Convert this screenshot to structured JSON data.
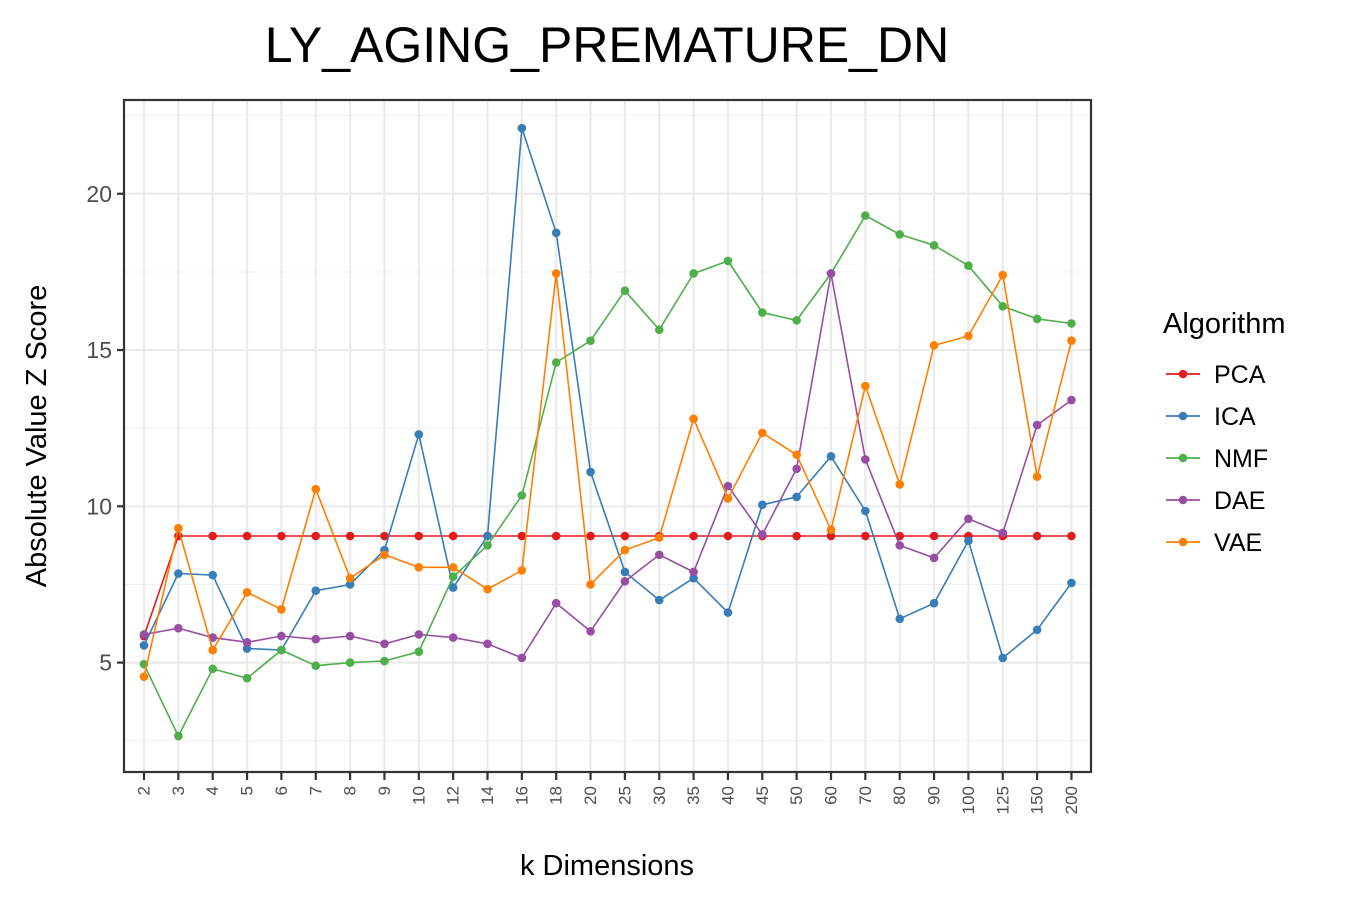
{
  "chart_data": {
    "type": "line",
    "title": "LY_AGING_PREMATURE_DN",
    "xlabel": "k Dimensions",
    "ylabel": "Absolute Value Z Score",
    "categories": [
      "2",
      "3",
      "4",
      "5",
      "6",
      "7",
      "8",
      "9",
      "10",
      "12",
      "14",
      "16",
      "18",
      "20",
      "25",
      "30",
      "35",
      "40",
      "45",
      "50",
      "60",
      "70",
      "80",
      "90",
      "100",
      "125",
      "150",
      "200"
    ],
    "ylim": [
      1.5,
      23
    ],
    "yticks": [
      "5",
      "10",
      "15",
      "20"
    ],
    "grid": true,
    "legend": {
      "title": "Algorithm",
      "position": "right"
    },
    "series": [
      {
        "name": "PCA",
        "color": "#E41A1C",
        "values": [
          5.85,
          9.05,
          9.05,
          9.05,
          9.05,
          9.05,
          9.05,
          9.05,
          9.05,
          9.05,
          9.05,
          9.05,
          9.05,
          9.05,
          9.05,
          9.05,
          9.05,
          9.05,
          9.05,
          9.05,
          9.05,
          9.05,
          9.05,
          9.05,
          9.05,
          9.05,
          9.05,
          9.05
        ]
      },
      {
        "name": "ICA",
        "color": "#377EB8",
        "values": [
          5.55,
          7.85,
          7.8,
          5.45,
          5.4,
          7.3,
          7.5,
          8.6,
          12.3,
          7.4,
          9.05,
          22.1,
          18.75,
          11.1,
          7.9,
          7.0,
          7.7,
          6.6,
          10.05,
          10.3,
          11.6,
          9.85,
          6.4,
          6.9,
          8.9,
          5.15,
          6.05,
          7.55
        ]
      },
      {
        "name": "NMF",
        "color": "#4DAF4A",
        "values": [
          4.95,
          2.65,
          4.8,
          4.5,
          5.4,
          4.9,
          5.0,
          5.05,
          5.35,
          7.75,
          8.75,
          10.35,
          14.6,
          15.3,
          16.9,
          15.65,
          17.45,
          17.85,
          16.2,
          15.95,
          17.45,
          19.3,
          18.7,
          18.35,
          17.7,
          16.4,
          16.0,
          15.85
        ]
      },
      {
        "name": "DAE",
        "color": "#984EA3",
        "values": [
          5.9,
          6.1,
          5.8,
          5.65,
          5.85,
          5.75,
          5.85,
          5.6,
          5.9,
          5.8,
          5.6,
          5.15,
          6.9,
          6.0,
          7.6,
          8.45,
          7.9,
          10.65,
          9.1,
          11.2,
          17.45,
          11.5,
          8.75,
          8.35,
          9.6,
          9.15,
          12.6,
          13.4
        ]
      },
      {
        "name": "VAE",
        "color": "#FF7F00",
        "values": [
          4.55,
          9.3,
          5.4,
          7.25,
          6.7,
          10.55,
          7.7,
          8.45,
          8.05,
          8.05,
          7.35,
          7.95,
          17.45,
          7.5,
          8.6,
          9.0,
          12.8,
          10.25,
          12.35,
          11.65,
          9.25,
          13.85,
          10.7,
          15.15,
          15.45,
          17.4,
          10.95,
          15.3
        ]
      }
    ]
  }
}
